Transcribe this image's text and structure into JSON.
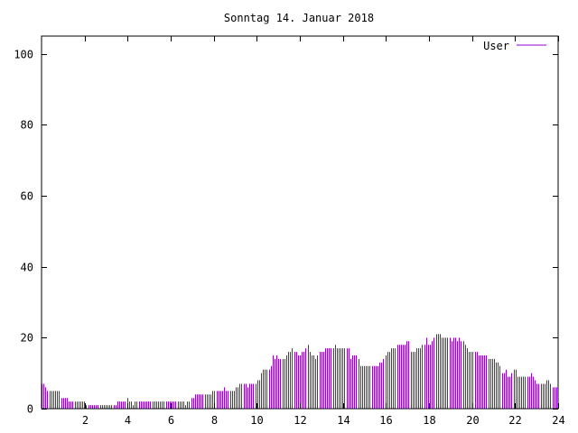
{
  "chart_data": {
    "type": "bar",
    "title": "Sonntag 14. Januar 2018",
    "xlabel": "",
    "ylabel": "",
    "xlim": [
      0,
      24
    ],
    "ylim": [
      0,
      105
    ],
    "x_ticks": [
      2,
      4,
      6,
      8,
      10,
      12,
      14,
      16,
      18,
      20,
      22,
      24
    ],
    "y_ticks": [
      0,
      20,
      40,
      60,
      80,
      100
    ],
    "x_tick_labels": [
      "2",
      "4",
      "6",
      "8",
      "10",
      "12",
      "14",
      "16",
      "18",
      "20",
      "22",
      "24"
    ],
    "y_tick_labels": [
      "0",
      "20",
      "40",
      "60",
      "80",
      "100"
    ],
    "grid": false,
    "legend_position": "top-right",
    "series": [
      {
        "name": "User",
        "color": "#9400d3",
        "values": [
          7,
          7,
          6,
          5,
          5,
          5,
          5,
          5,
          5,
          5,
          3,
          3,
          3,
          3,
          2,
          2,
          2,
          2,
          2,
          2,
          2,
          2,
          2,
          1,
          1,
          1,
          1,
          1,
          1,
          1,
          1,
          1,
          1,
          1,
          1,
          1,
          1,
          1,
          1,
          2,
          2,
          2,
          2,
          2,
          3,
          2,
          2,
          1,
          2,
          2,
          2,
          2,
          2,
          2,
          2,
          2,
          2,
          2,
          2,
          2,
          2,
          2,
          2,
          2,
          2,
          2,
          2,
          2,
          2,
          2,
          2,
          2,
          2,
          2,
          1,
          2,
          2,
          3,
          3,
          4,
          4,
          4,
          4,
          4,
          4,
          4,
          4,
          4,
          5,
          5,
          5,
          5,
          5,
          5,
          6,
          5,
          5,
          5,
          5,
          5,
          6,
          6,
          7,
          7,
          7,
          7,
          6,
          7,
          7,
          7,
          7,
          8,
          8,
          10,
          11,
          11,
          11,
          11,
          12,
          15,
          14,
          15,
          14,
          14,
          14,
          14,
          15,
          16,
          16,
          17,
          16,
          16,
          15,
          15,
          16,
          16,
          17,
          18,
          16,
          15,
          15,
          14,
          15,
          16,
          16,
          16,
          17,
          17,
          17,
          17,
          17,
          18,
          17,
          17,
          17,
          17,
          17,
          17,
          17,
          14,
          15,
          15,
          15,
          14,
          12,
          12,
          12,
          12,
          12,
          12,
          12,
          12,
          12,
          12,
          13,
          13,
          14,
          15,
          16,
          16,
          17,
          17,
          17,
          18,
          18,
          18,
          18,
          18,
          19,
          19,
          16,
          16,
          16,
          17,
          17,
          17,
          18,
          18,
          20,
          18,
          18,
          19,
          20,
          21,
          21,
          21,
          20,
          20,
          20,
          20,
          20,
          19,
          20,
          20,
          19,
          20,
          19,
          19,
          18,
          17,
          16,
          16,
          16,
          16,
          16,
          15,
          15,
          15,
          15,
          15,
          14,
          14,
          14,
          14,
          13,
          13,
          12,
          10,
          10,
          11,
          9,
          9,
          10,
          11,
          11,
          9,
          9,
          9,
          9,
          9,
          9,
          9,
          10,
          9,
          8,
          7,
          7,
          7,
          7,
          7,
          8,
          8,
          7,
          6,
          6,
          6
        ]
      }
    ]
  }
}
